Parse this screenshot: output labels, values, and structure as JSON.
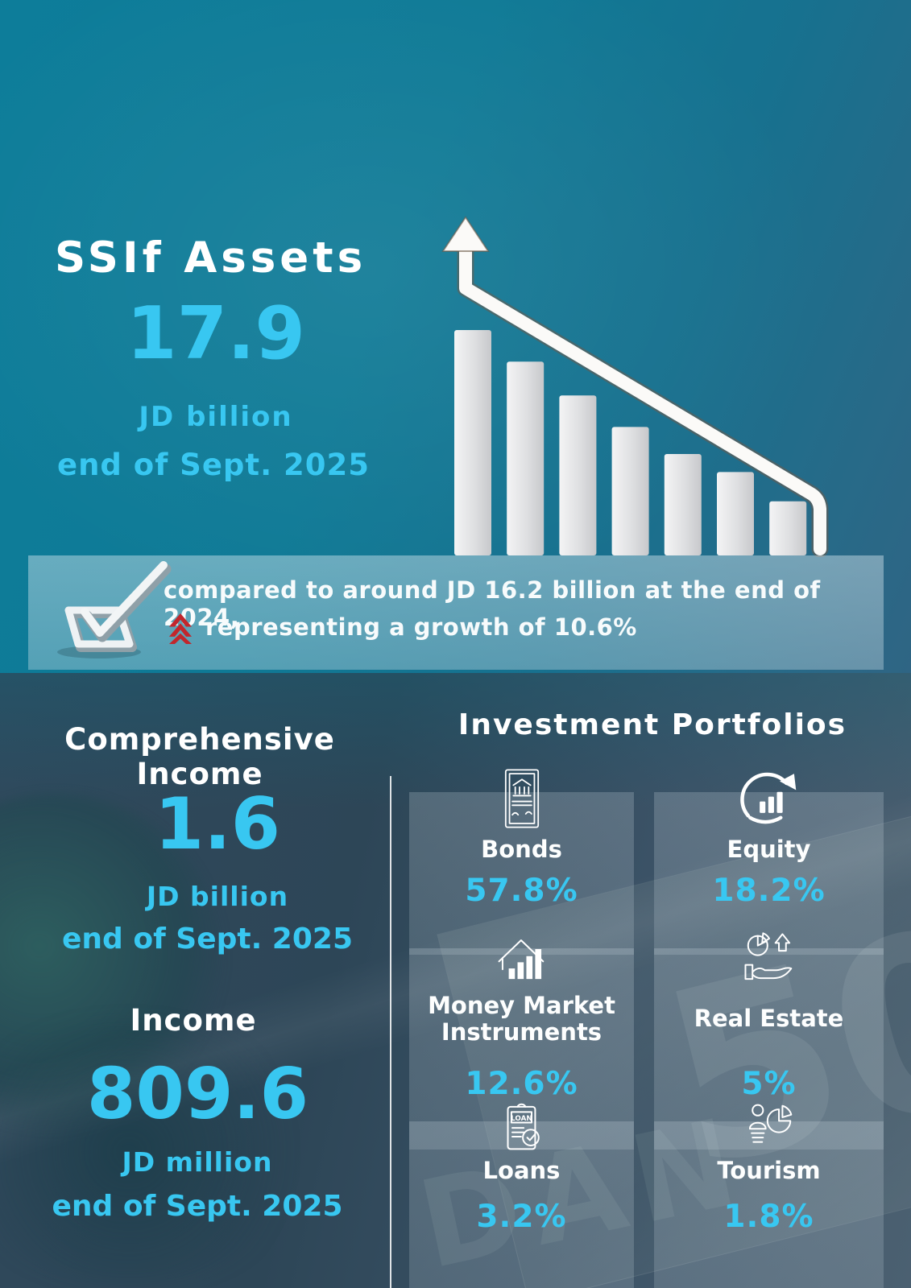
{
  "colors": {
    "accent_cyan": "#38C7F1",
    "top_background": "#0F7A96",
    "bottom_background": "#31495C",
    "band_overlay": "rgba(219,233,240,0.34)",
    "tile_overlay": "rgba(228,240,246,0.16)",
    "bar_fill_light": "#F3F3F4",
    "bar_fill_dark": "#C9CACD",
    "red_chevron": "#C2262C",
    "divider_white": "rgba(255,255,255,0.85)"
  },
  "header": {
    "title": "SSIf Assets",
    "value": "17.9",
    "unit": "JD billion",
    "period": "end of Sept. 2025"
  },
  "comparison": {
    "line1": "compared to around JD 16.2 billion at the end of 2024,",
    "line2": "representing  a growth of 10.6%",
    "icons": [
      "checkbox-3d-icon",
      "double-chevron-up-icon"
    ]
  },
  "comprehensive_income": {
    "title": "Comprehensive Income",
    "value": "1.6",
    "unit": "JD billion",
    "period": "end of Sept. 2025"
  },
  "income": {
    "title": "Income",
    "value": "809.6",
    "unit": "JD million",
    "period": "end of Sept. 2025"
  },
  "portfolios": {
    "title": "Investment Portfolios",
    "items": [
      {
        "label": "Bonds",
        "value": "57.8%",
        "icon": "bond-certificate-icon"
      },
      {
        "label": "Equity",
        "value": "18.2%",
        "icon": "equity-growth-chart-icon"
      },
      {
        "label": "Money Market Instruments",
        "value": "12.6%",
        "icon": "money-market-house-chart-icon"
      },
      {
        "label": "Real Estate",
        "value": "5%",
        "icon": "real-estate-hand-pie-icon"
      },
      {
        "label": "Loans",
        "value": "3.2%",
        "icon": "loan-document-check-icon"
      },
      {
        "label": "Tourism",
        "value": "1.8%",
        "icon": "tourism-person-pie-icon"
      }
    ]
  },
  "background": {
    "watermark_50": "50",
    "watermark_dan": "DAN"
  },
  "chart_data": [
    {
      "type": "bar",
      "title": "SSIF Assets graphic: seven descending bars with rising arrow (decorative, unlabeled)",
      "categories": [
        "bar1",
        "bar2",
        "bar3",
        "bar4",
        "bar5",
        "bar6",
        "bar7"
      ],
      "values": [
        100,
        86,
        71,
        57,
        45,
        37,
        24
      ],
      "xlabel": "",
      "ylabel": "",
      "ylim": [
        0,
        100
      ],
      "grid": false,
      "legend": "none"
    },
    {
      "type": "pie",
      "title": "Investment Portfolios",
      "categories": [
        "Bonds",
        "Equity",
        "Money Market Instruments",
        "Real Estate",
        "Loans",
        "Tourism"
      ],
      "values": [
        57.8,
        18.2,
        12.6,
        5,
        3.2,
        1.8
      ],
      "unit": "%",
      "legend": "tiles"
    }
  ]
}
